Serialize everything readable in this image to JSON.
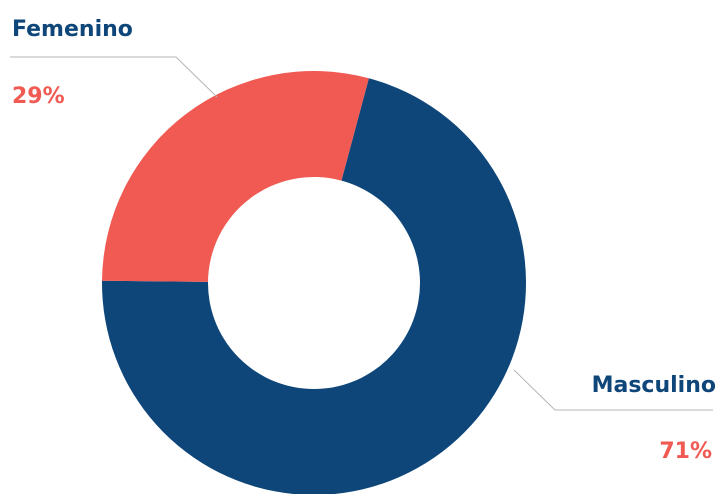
{
  "chart_data": {
    "type": "pie",
    "variant": "donut",
    "categories": [
      "Masculino",
      "Femenino"
    ],
    "values": [
      71,
      29
    ],
    "value_labels": [
      "71%",
      "29%"
    ],
    "colors": [
      "#0e467a",
      "#f05a52"
    ],
    "label_color": "#0e467a",
    "value_color": "#f05a52",
    "leader_line_color": "#b5b5b5",
    "title": "",
    "legend": "none"
  }
}
